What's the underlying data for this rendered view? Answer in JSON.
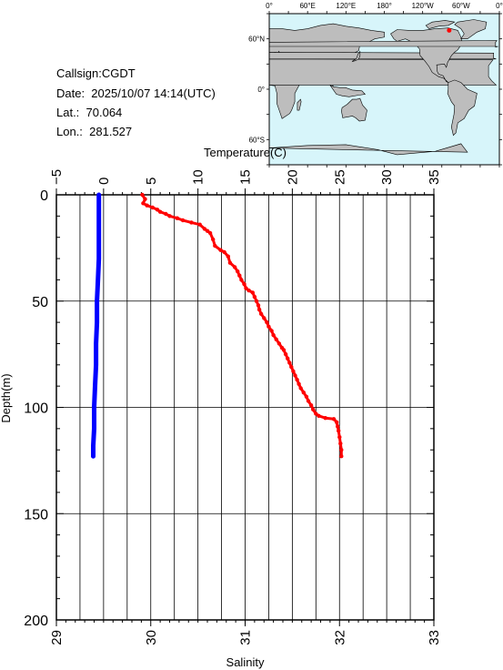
{
  "header": {
    "callsign": "Callsign:CGDT",
    "date": "Date:  2025/10/07 14:14(UTC)",
    "lat": "Lat.:  70.064",
    "lon": "Lon.:  281.527"
  },
  "map": {
    "top_labels": [
      "0°",
      "60°E",
      "120°E",
      "180°",
      "120°W",
      "60°W",
      "0°"
    ],
    "side_labels": [
      "60°N",
      "0°",
      "60°S"
    ],
    "ocean_color": "#d7f5fa",
    "land_color": "#bdbdbd",
    "marker_color": "#ff0000",
    "marker_lon": 281.527,
    "marker_lat": 70.064
  },
  "chart_data": {
    "type": "line",
    "top_axis_label": "Temperature(C)",
    "bottom_axis_label": "Salinity",
    "y_axis_label": "Depth(m)",
    "temperature_ticks": [
      "−5",
      "0",
      "5",
      "10",
      "15",
      "20",
      "25",
      "30",
      "35"
    ],
    "salinity_ticks": [
      "29",
      "30",
      "31",
      "32",
      "33"
    ],
    "depth_ticks": [
      "0",
      "50",
      "100",
      "150",
      "200"
    ],
    "temperature_range": [
      -5,
      35
    ],
    "salinity_range": [
      29,
      33
    ],
    "depth_range": [
      0,
      200
    ],
    "series": [
      {
        "axis": "temperature",
        "color": "#ff0000",
        "points": [
          [
            4.1,
            0
          ],
          [
            4.4,
            2
          ],
          [
            4.2,
            4
          ],
          [
            4.6,
            5
          ],
          [
            5.2,
            6
          ],
          [
            5.7,
            7
          ],
          [
            6.0,
            8
          ],
          [
            6.6,
            9
          ],
          [
            7.0,
            10
          ],
          [
            7.8,
            11
          ],
          [
            8.4,
            12
          ],
          [
            9.3,
            13
          ],
          [
            10.2,
            14
          ],
          [
            10.7,
            16
          ],
          [
            11.0,
            17
          ],
          [
            11.3,
            18
          ],
          [
            11.6,
            21
          ],
          [
            11.8,
            24
          ],
          [
            12.4,
            26
          ],
          [
            12.8,
            27
          ],
          [
            13.2,
            29
          ],
          [
            13.4,
            32
          ],
          [
            13.9,
            34
          ],
          [
            14.2,
            36
          ],
          [
            14.4,
            38
          ],
          [
            14.6,
            40
          ],
          [
            14.9,
            42
          ],
          [
            15.1,
            44
          ],
          [
            15.4,
            45
          ],
          [
            15.8,
            46
          ],
          [
            16.0,
            48
          ],
          [
            16.2,
            50
          ],
          [
            16.4,
            52
          ],
          [
            16.5,
            54
          ],
          [
            16.7,
            56
          ],
          [
            17.0,
            58
          ],
          [
            17.3,
            60
          ],
          [
            17.5,
            62
          ],
          [
            17.8,
            64
          ],
          [
            18.0,
            66
          ],
          [
            18.3,
            68
          ],
          [
            18.6,
            70
          ],
          [
            18.9,
            72
          ],
          [
            19.1,
            73
          ],
          [
            19.3,
            75
          ],
          [
            19.5,
            77
          ],
          [
            19.7,
            79
          ],
          [
            19.9,
            81
          ],
          [
            20.1,
            83
          ],
          [
            20.3,
            85
          ],
          [
            20.5,
            87
          ],
          [
            20.7,
            89
          ],
          [
            20.9,
            91
          ],
          [
            21.2,
            93
          ],
          [
            21.5,
            95
          ],
          [
            21.7,
            97
          ],
          [
            22.0,
            99
          ],
          [
            22.2,
            101
          ],
          [
            22.5,
            103
          ],
          [
            22.8,
            104
          ],
          [
            23.5,
            105
          ],
          [
            24.4,
            105.5
          ],
          [
            24.7,
            107
          ],
          [
            24.8,
            109
          ],
          [
            24.9,
            111
          ],
          [
            25.0,
            114
          ],
          [
            25.1,
            117
          ],
          [
            25.2,
            120
          ],
          [
            25.2,
            123
          ]
        ]
      },
      {
        "axis": "salinity",
        "color": "#0000ff",
        "points": [
          [
            29.45,
            0
          ],
          [
            29.45,
            10
          ],
          [
            29.45,
            20
          ],
          [
            29.45,
            30
          ],
          [
            29.44,
            40
          ],
          [
            29.43,
            50
          ],
          [
            29.43,
            60
          ],
          [
            29.42,
            70
          ],
          [
            29.42,
            80
          ],
          [
            29.41,
            90
          ],
          [
            29.4,
            100
          ],
          [
            29.4,
            110
          ],
          [
            29.39,
            118
          ],
          [
            29.39,
            123
          ]
        ]
      }
    ],
    "grid": true
  }
}
